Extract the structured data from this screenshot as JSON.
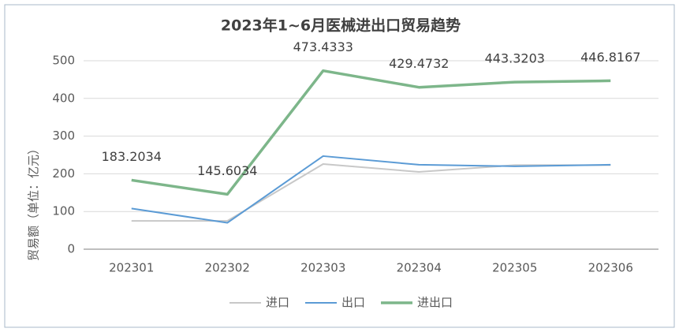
{
  "chart_data": {
    "type": "line",
    "title": "2023年1~6月医械进出口贸易趋势",
    "y_label": "贸易额（单位：亿元）",
    "categories": [
      "202301",
      "202302",
      "202303",
      "202304",
      "202305",
      "202306"
    ],
    "series": [
      {
        "name": "进口",
        "color": "#c8c8c8",
        "values": [
          75,
          75,
          226,
          205,
          223,
          223
        ]
      },
      {
        "name": "出口",
        "color": "#5b9bd5",
        "values": [
          108,
          70,
          247,
          224,
          220,
          224
        ]
      },
      {
        "name": "进出口",
        "color": "#7db68a",
        "values": [
          183.2034,
          145.6034,
          473.4333,
          429.4732,
          443.3203,
          446.8167
        ],
        "labels": true
      }
    ],
    "ylim": [
      0,
      500
    ],
    "yticks": [
      0,
      100,
      200,
      300,
      400,
      500
    ],
    "grid": true,
    "legend": "bottom"
  }
}
